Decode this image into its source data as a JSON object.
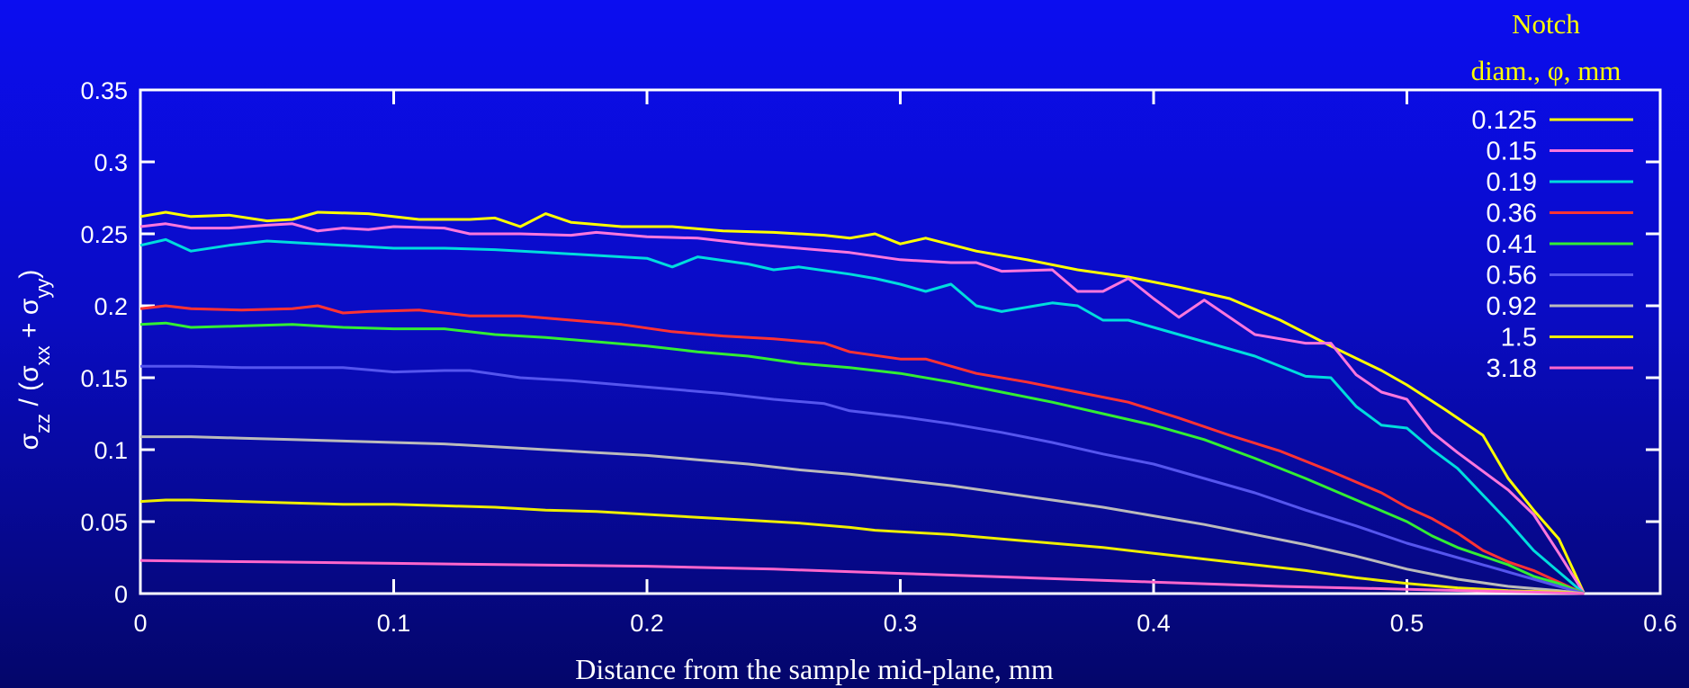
{
  "chart_data": {
    "type": "line",
    "xlabel": "Distance from the sample mid-plane, mm",
    "ylabel": {
      "prefix": "σ",
      "zz": "zz",
      "mid": " / (σ",
      "xx": "xx",
      "plus": " + σ",
      "yy": "yy",
      "end": ")"
    },
    "xlim": [
      0,
      0.6
    ],
    "ylim": [
      0,
      0.35
    ],
    "x_ticks": [
      "0",
      "0.1",
      "0.2",
      "0.3",
      "0.4",
      "0.5",
      "0.6"
    ],
    "y_ticks": [
      "0",
      "0.05",
      "0.1",
      "0.15",
      "0.2",
      "0.25",
      "0.3",
      "0.35"
    ],
    "grid": false,
    "legend_title_line1": "Notch",
    "legend_title_line2": "diam., φ, mm",
    "legend_placement": "top-right",
    "series": [
      {
        "name": "0.125",
        "color": "#ffff00",
        "x": [
          0,
          0.01,
          0.02,
          0.035,
          0.05,
          0.06,
          0.07,
          0.09,
          0.11,
          0.13,
          0.14,
          0.15,
          0.16,
          0.17,
          0.19,
          0.21,
          0.23,
          0.25,
          0.27,
          0.28,
          0.29,
          0.3,
          0.31,
          0.33,
          0.35,
          0.37,
          0.39,
          0.41,
          0.43,
          0.45,
          0.47,
          0.49,
          0.5,
          0.515,
          0.53,
          0.54,
          0.55,
          0.56,
          0.57
        ],
        "y": [
          0.262,
          0.265,
          0.262,
          0.263,
          0.259,
          0.26,
          0.265,
          0.264,
          0.26,
          0.26,
          0.261,
          0.255,
          0.264,
          0.258,
          0.255,
          0.255,
          0.252,
          0.251,
          0.249,
          0.247,
          0.25,
          0.243,
          0.247,
          0.238,
          0.232,
          0.225,
          0.22,
          0.213,
          0.205,
          0.19,
          0.172,
          0.155,
          0.145,
          0.128,
          0.11,
          0.08,
          0.058,
          0.038,
          0.0
        ]
      },
      {
        "name": "0.15",
        "color": "#ff77dd",
        "x": [
          0,
          0.01,
          0.02,
          0.035,
          0.05,
          0.06,
          0.07,
          0.08,
          0.09,
          0.1,
          0.12,
          0.13,
          0.15,
          0.17,
          0.18,
          0.2,
          0.22,
          0.24,
          0.26,
          0.28,
          0.3,
          0.32,
          0.33,
          0.34,
          0.36,
          0.37,
          0.38,
          0.39,
          0.4,
          0.41,
          0.42,
          0.44,
          0.46,
          0.47,
          0.48,
          0.49,
          0.5,
          0.51,
          0.52,
          0.54,
          0.55,
          0.56,
          0.57
        ],
        "y": [
          0.255,
          0.257,
          0.254,
          0.254,
          0.256,
          0.257,
          0.252,
          0.254,
          0.253,
          0.255,
          0.254,
          0.25,
          0.25,
          0.249,
          0.251,
          0.248,
          0.247,
          0.243,
          0.24,
          0.237,
          0.232,
          0.23,
          0.23,
          0.224,
          0.225,
          0.21,
          0.21,
          0.219,
          0.205,
          0.192,
          0.204,
          0.18,
          0.174,
          0.174,
          0.152,
          0.14,
          0.135,
          0.112,
          0.098,
          0.072,
          0.055,
          0.028,
          0.0
        ]
      },
      {
        "name": "0.19",
        "color": "#00dddd",
        "x": [
          0,
          0.01,
          0.02,
          0.035,
          0.05,
          0.07,
          0.09,
          0.1,
          0.12,
          0.14,
          0.16,
          0.18,
          0.2,
          0.21,
          0.22,
          0.24,
          0.25,
          0.26,
          0.28,
          0.29,
          0.3,
          0.31,
          0.32,
          0.33,
          0.34,
          0.36,
          0.37,
          0.38,
          0.39,
          0.4,
          0.42,
          0.44,
          0.46,
          0.47,
          0.48,
          0.49,
          0.5,
          0.51,
          0.52,
          0.54,
          0.55,
          0.56,
          0.57
        ],
        "y": [
          0.242,
          0.246,
          0.238,
          0.242,
          0.245,
          0.243,
          0.241,
          0.24,
          0.24,
          0.239,
          0.237,
          0.235,
          0.233,
          0.227,
          0.234,
          0.229,
          0.225,
          0.227,
          0.222,
          0.219,
          0.215,
          0.21,
          0.215,
          0.2,
          0.196,
          0.202,
          0.2,
          0.19,
          0.19,
          0.185,
          0.175,
          0.165,
          0.151,
          0.15,
          0.13,
          0.117,
          0.115,
          0.1,
          0.087,
          0.05,
          0.03,
          0.015,
          0.0
        ]
      },
      {
        "name": "0.36",
        "color": "#ff3333",
        "x": [
          0,
          0.01,
          0.02,
          0.04,
          0.06,
          0.07,
          0.08,
          0.09,
          0.11,
          0.13,
          0.15,
          0.17,
          0.19,
          0.21,
          0.23,
          0.25,
          0.27,
          0.28,
          0.3,
          0.31,
          0.33,
          0.35,
          0.37,
          0.39,
          0.41,
          0.43,
          0.45,
          0.47,
          0.49,
          0.5,
          0.51,
          0.52,
          0.53,
          0.54,
          0.55,
          0.56,
          0.57
        ],
        "y": [
          0.198,
          0.2,
          0.198,
          0.197,
          0.198,
          0.2,
          0.195,
          0.196,
          0.197,
          0.193,
          0.193,
          0.19,
          0.187,
          0.182,
          0.179,
          0.177,
          0.174,
          0.168,
          0.163,
          0.163,
          0.153,
          0.147,
          0.14,
          0.133,
          0.122,
          0.11,
          0.099,
          0.085,
          0.07,
          0.06,
          0.052,
          0.042,
          0.03,
          0.022,
          0.016,
          0.008,
          0.0
        ]
      },
      {
        "name": "0.41",
        "color": "#33ee33",
        "x": [
          0,
          0.01,
          0.02,
          0.04,
          0.06,
          0.08,
          0.1,
          0.12,
          0.14,
          0.16,
          0.18,
          0.2,
          0.22,
          0.24,
          0.26,
          0.28,
          0.3,
          0.32,
          0.34,
          0.36,
          0.38,
          0.4,
          0.42,
          0.44,
          0.46,
          0.48,
          0.5,
          0.51,
          0.52,
          0.54,
          0.55,
          0.56,
          0.57
        ],
        "y": [
          0.187,
          0.188,
          0.185,
          0.186,
          0.187,
          0.185,
          0.184,
          0.184,
          0.18,
          0.178,
          0.175,
          0.172,
          0.168,
          0.165,
          0.16,
          0.157,
          0.153,
          0.147,
          0.14,
          0.133,
          0.125,
          0.117,
          0.107,
          0.094,
          0.08,
          0.065,
          0.05,
          0.04,
          0.032,
          0.02,
          0.012,
          0.007,
          0.0
        ]
      },
      {
        "name": "0.56",
        "color": "#5555ee",
        "x": [
          0,
          0.02,
          0.04,
          0.06,
          0.08,
          0.1,
          0.12,
          0.13,
          0.15,
          0.17,
          0.19,
          0.21,
          0.23,
          0.25,
          0.27,
          0.28,
          0.3,
          0.32,
          0.34,
          0.36,
          0.38,
          0.4,
          0.42,
          0.44,
          0.46,
          0.48,
          0.5,
          0.52,
          0.54,
          0.55,
          0.56,
          0.57
        ],
        "y": [
          0.158,
          0.158,
          0.157,
          0.157,
          0.157,
          0.154,
          0.155,
          0.155,
          0.15,
          0.148,
          0.145,
          0.142,
          0.139,
          0.135,
          0.132,
          0.127,
          0.123,
          0.118,
          0.112,
          0.105,
          0.097,
          0.09,
          0.08,
          0.07,
          0.058,
          0.047,
          0.035,
          0.025,
          0.015,
          0.01,
          0.005,
          0.0
        ]
      },
      {
        "name": "0.92",
        "color": "#bbbbbb",
        "x": [
          0,
          0.02,
          0.04,
          0.06,
          0.08,
          0.1,
          0.12,
          0.14,
          0.16,
          0.18,
          0.2,
          0.22,
          0.24,
          0.26,
          0.28,
          0.3,
          0.32,
          0.34,
          0.36,
          0.38,
          0.4,
          0.42,
          0.44,
          0.46,
          0.48,
          0.5,
          0.52,
          0.54,
          0.56,
          0.57
        ],
        "y": [
          0.109,
          0.109,
          0.108,
          0.107,
          0.106,
          0.105,
          0.104,
          0.102,
          0.1,
          0.098,
          0.096,
          0.093,
          0.09,
          0.086,
          0.083,
          0.079,
          0.075,
          0.07,
          0.065,
          0.06,
          0.054,
          0.048,
          0.041,
          0.034,
          0.026,
          0.017,
          0.01,
          0.005,
          0.002,
          0.0
        ]
      },
      {
        "name": "1.5",
        "color": "#eeee00",
        "x": [
          0,
          0.01,
          0.02,
          0.04,
          0.06,
          0.08,
          0.1,
          0.12,
          0.14,
          0.16,
          0.18,
          0.2,
          0.22,
          0.24,
          0.26,
          0.28,
          0.29,
          0.3,
          0.32,
          0.34,
          0.36,
          0.38,
          0.4,
          0.42,
          0.44,
          0.46,
          0.48,
          0.5,
          0.52,
          0.54,
          0.56,
          0.57
        ],
        "y": [
          0.064,
          0.065,
          0.065,
          0.064,
          0.063,
          0.062,
          0.062,
          0.061,
          0.06,
          0.058,
          0.057,
          0.055,
          0.053,
          0.051,
          0.049,
          0.046,
          0.044,
          0.043,
          0.041,
          0.038,
          0.035,
          0.032,
          0.028,
          0.024,
          0.02,
          0.016,
          0.011,
          0.007,
          0.004,
          0.002,
          0.001,
          0.0
        ]
      },
      {
        "name": "3.18",
        "color": "#ff66cc",
        "x": [
          0,
          0.05,
          0.1,
          0.15,
          0.2,
          0.25,
          0.3,
          0.35,
          0.4,
          0.45,
          0.5,
          0.55,
          0.57
        ],
        "y": [
          0.023,
          0.022,
          0.021,
          0.02,
          0.019,
          0.017,
          0.014,
          0.011,
          0.008,
          0.005,
          0.003,
          0.001,
          0.0
        ]
      }
    ]
  }
}
